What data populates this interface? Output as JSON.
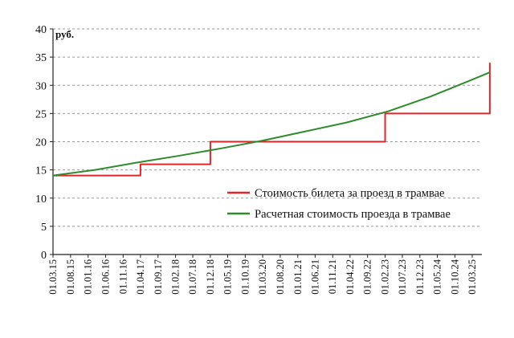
{
  "chart_data": {
    "type": "line",
    "unit_label": "руб.",
    "ylim": [
      0,
      40
    ],
    "y_ticks": [
      "0",
      "5",
      "10",
      "15",
      "20",
      "25",
      "30",
      "35",
      "40"
    ],
    "x_ticks": [
      "01.03.15",
      "01.08.15",
      "01.01.16",
      "01.06.16",
      "01.11.16",
      "01.04.17",
      "01.09.17",
      "01.02.18",
      "01.07.18",
      "01.12.18",
      "01.05.19",
      "01.10.19",
      "01.03.20",
      "01.08.20",
      "01.01.21",
      "01.06.21",
      "01.11.21",
      "01.04.22",
      "01.09.22",
      "01.02.23",
      "01.07.23",
      "01.12.23",
      "01.05.24",
      "01.10.24",
      "01.03.25"
    ],
    "grid": "horizontal dashed",
    "legend_position": "inside-lower-right",
    "series": [
      {
        "name": "Стоимость билета за проезд в трамвае",
        "color": "#e0262a",
        "step": true,
        "x": [
          "01.03.15",
          "01.04.17",
          "01.12.18",
          "01.02.23",
          "01.08.25",
          "01.08.25"
        ],
        "y": [
          14,
          16,
          20,
          25,
          25,
          34
        ]
      },
      {
        "name": "Расчетная стоимость проезда в трамвае",
        "color": "#2e8b2e",
        "step": false,
        "x": [
          "01.03.15",
          "01.03.16",
          "01.03.17",
          "01.03.18",
          "01.03.19",
          "01.03.20",
          "01.03.21",
          "01.03.22",
          "01.03.23",
          "01.03.24",
          "01.03.25",
          "01.08.25"
        ],
        "y": [
          14.0,
          15.0,
          16.3,
          17.5,
          18.8,
          20.2,
          21.8,
          23.4,
          25.4,
          28.0,
          31.0,
          32.3
        ]
      }
    ]
  }
}
